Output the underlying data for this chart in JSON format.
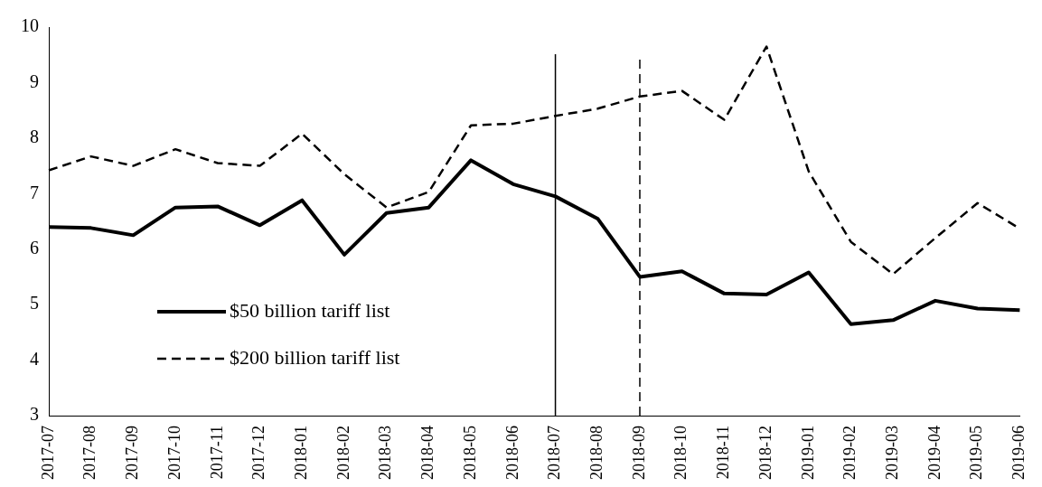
{
  "chart_data": {
    "type": "line",
    "categories": [
      "2017-07",
      "2017-08",
      "2017-09",
      "2017-10",
      "2017-11",
      "2017-12",
      "2018-01",
      "2018-02",
      "2018-03",
      "2018-04",
      "2018-05",
      "2018-06",
      "2018-07",
      "2018-08",
      "2018-09",
      "2018-10",
      "2018-11",
      "2018-12",
      "2019-01",
      "2019-02",
      "2019-03",
      "2019-04",
      "2019-05",
      "2019-06"
    ],
    "series": [
      {
        "name": "$50 billion tariff list",
        "color": "#000000",
        "line_style": "solid",
        "values": [
          6.4,
          6.38,
          6.25,
          6.75,
          6.77,
          6.43,
          6.88,
          5.9,
          6.65,
          6.75,
          7.6,
          7.17,
          6.95,
          6.55,
          5.5,
          5.6,
          5.2,
          5.18,
          5.58,
          4.65,
          4.72,
          5.07,
          4.93,
          4.9
        ]
      },
      {
        "name": "$200 billion tariff list",
        "color": "#000000",
        "line_style": "dashed",
        "values": [
          7.42,
          7.67,
          7.5,
          7.8,
          7.55,
          7.5,
          8.08,
          7.35,
          6.75,
          7.03,
          8.23,
          8.26,
          8.4,
          8.53,
          8.75,
          8.85,
          8.33,
          9.65,
          7.4,
          6.13,
          5.55,
          6.2,
          6.83,
          6.37
        ]
      }
    ],
    "ylim": [
      3,
      10
    ],
    "yticks": [
      3,
      4,
      5,
      6,
      7,
      8,
      9,
      10
    ],
    "grid": false,
    "legend": "bottom left",
    "marker": "none",
    "ref_lines": [
      {
        "axis": "x",
        "value": "2018-07",
        "color": "#000000",
        "line_style": "solid"
      },
      {
        "axis": "x",
        "value": "2018-09",
        "color": "#000000",
        "line_style": "dashed"
      }
    ]
  }
}
